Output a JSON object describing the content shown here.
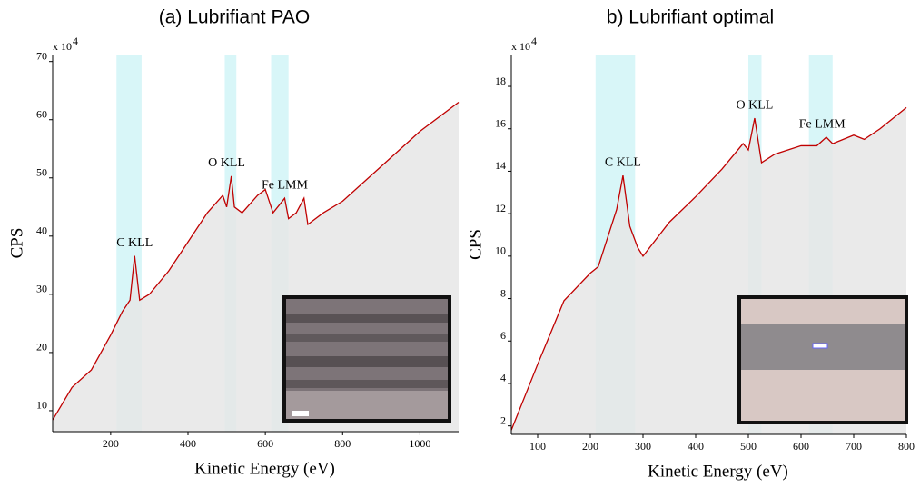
{
  "chart_data": [
    {
      "type": "line",
      "title": "(a) Lubrifiant PAO",
      "xlabel": "Kinetic Energy (eV)",
      "ylabel": "CPS",
      "axis_multiplier": "x 10",
      "axis_multiplier_exponent": "4",
      "x": [
        50,
        100,
        150,
        200,
        230,
        250,
        262,
        275,
        300,
        350,
        400,
        450,
        490,
        500,
        512,
        520,
        540,
        580,
        600,
        620,
        650,
        660,
        680,
        700,
        710,
        750,
        800,
        900,
        1000,
        1100
      ],
      "values": [
        8.4,
        14,
        17,
        23,
        27,
        29,
        36.6,
        29,
        30,
        34,
        39,
        44,
        47,
        45,
        50.3,
        45,
        44,
        47,
        48,
        44,
        46.5,
        43,
        44,
        46.5,
        42,
        44,
        46,
        52,
        58,
        63
      ],
      "color": "#c00000",
      "fill_color": "#e6e6e6",
      "highlight_regions": [
        [
          215,
          280
        ],
        [
          495,
          525
        ],
        [
          615,
          660
        ]
      ],
      "highlight_color": "#d8f6f8",
      "annotations": [
        {
          "text": "C KLL",
          "x": 262
        },
        {
          "text": "O KLL",
          "x": 500
        },
        {
          "text": "Fe LMM",
          "x": 650
        }
      ],
      "xlim": [
        50,
        1100
      ],
      "xticks": [
        200,
        400,
        600,
        800,
        1000
      ],
      "ylim": [
        6.4,
        71.2
      ],
      "yticks": [
        10,
        20,
        30,
        40,
        50,
        60,
        70
      ]
    },
    {
      "type": "line",
      "title": "b) Lubrifiant optimal",
      "xlabel": "Kinetic Energy (eV)",
      "ylabel": "CPS",
      "axis_multiplier": "x 10",
      "axis_multiplier_exponent": "4",
      "x": [
        50,
        100,
        150,
        200,
        215,
        250,
        262,
        275,
        290,
        300,
        350,
        400,
        450,
        490,
        500,
        512,
        525,
        550,
        600,
        630,
        648,
        660,
        700,
        720,
        750,
        800
      ],
      "values": [
        1.8,
        4.9,
        7.9,
        9.2,
        9.5,
        12.2,
        13.8,
        11.4,
        10.4,
        10,
        11.6,
        12.8,
        14.1,
        15.3,
        15,
        16.5,
        14.4,
        14.8,
        15.2,
        15.2,
        15.6,
        15.3,
        15.7,
        15.5,
        16,
        17
      ],
      "color": "#c00000",
      "fill_color": "#e6e6e6",
      "highlight_regions": [
        [
          210,
          285
        ],
        [
          500,
          525
        ],
        [
          615,
          660
        ]
      ],
      "highlight_color": "#d8f6f8",
      "annotations": [
        {
          "text": "C KLL",
          "x": 262
        },
        {
          "text": "O KLL",
          "x": 512
        },
        {
          "text": "Fe LMM",
          "x": 640
        }
      ],
      "xlim": [
        50,
        800
      ],
      "xticks": [
        100,
        200,
        300,
        400,
        500,
        600,
        700,
        800
      ],
      "ylim": [
        1.6,
        19.5
      ],
      "yticks": [
        2,
        4,
        6,
        8,
        10,
        12,
        14,
        16,
        18
      ]
    }
  ]
}
